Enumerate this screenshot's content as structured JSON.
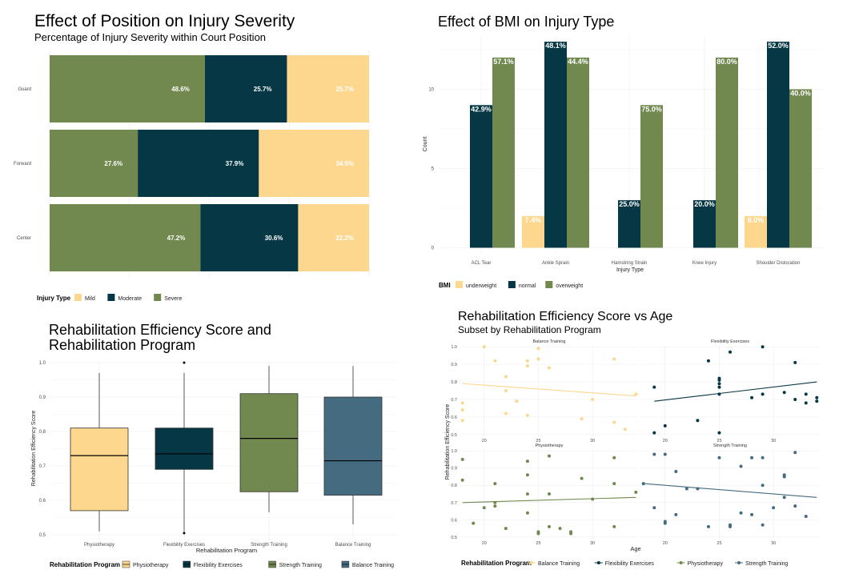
{
  "chart_data": [
    {
      "type": "bar",
      "orientation": "horizontal-stacked-percent",
      "title": "Effect of Position on Injury Severity",
      "subtitle": "Percentage of Injury Severity within Court Position",
      "categories": [
        "Guard",
        "Forward",
        "Center"
      ],
      "series": [
        {
          "name": "Severe",
          "color": "#71884F",
          "values": [
            48.6,
            27.6,
            47.2
          ],
          "labels": [
            "48.6%",
            "27.6%",
            "47.2%"
          ]
        },
        {
          "name": "Moderate",
          "color": "#063744",
          "values": [
            25.7,
            37.9,
            30.6
          ],
          "labels": [
            "25.7%",
            "37.9%",
            "30.6%"
          ]
        },
        {
          "name": "Mild",
          "color": "#FDD78E",
          "values": [
            25.7,
            34.5,
            22.2
          ],
          "labels": [
            "25.7%",
            "34.5%",
            "22.2%"
          ]
        }
      ],
      "legend": {
        "title": "Injury Type",
        "items": [
          "Mild",
          "Moderate",
          "Severe"
        ],
        "position": "bottom-left"
      }
    },
    {
      "type": "bar",
      "orientation": "grouped",
      "title": "Effect of BMI on Injury Type",
      "xlabel": "Injury Type",
      "ylabel": "Count",
      "ylim": [
        0,
        13
      ],
      "yticks": [
        "0",
        "5",
        "10"
      ],
      "categories": [
        "ACL Tear",
        "Ankle Sprain",
        "Hamstring Strain",
        "Knee Injury",
        "Shoulder Dislocation"
      ],
      "series": [
        {
          "name": "underweight",
          "color": "#FDD78E",
          "values": [
            0,
            2,
            0,
            0,
            2
          ],
          "labels": [
            "",
            "7.4%",
            "",
            "",
            "8.0%"
          ]
        },
        {
          "name": "normal",
          "color": "#063744",
          "values": [
            9,
            13,
            3,
            3,
            13
          ],
          "labels": [
            "42.9%",
            "48.1%",
            "25.0%",
            "20.0%",
            "52.0%"
          ]
        },
        {
          "name": "overweight",
          "color": "#71884F",
          "values": [
            12,
            12,
            9,
            12,
            10
          ],
          "labels": [
            "57.1%",
            "44.4%",
            "75.0%",
            "80.0%",
            "40.0%"
          ]
        }
      ],
      "legend": {
        "title": "BMI",
        "items": [
          "underweight",
          "normal",
          "overweight"
        ],
        "position": "bottom-left"
      }
    },
    {
      "type": "box",
      "title_lines": [
        "Rehabilitation Efficiency Score and",
        "Rehabilitation Program"
      ],
      "xlabel": "Rehabilitation Program",
      "ylabel": "Rehabilitation Efficiency Score",
      "ylim": [
        0.49,
        1.01
      ],
      "yticks": [
        "0.5",
        "0.6",
        "0.7",
        "0.8",
        "0.9",
        "1.0"
      ],
      "categories": [
        "Physiotherapy",
        "Flexibility Exercises",
        "Strength Training",
        "Balance Training"
      ],
      "boxes": [
        {
          "name": "Physiotherapy",
          "color": "#FDD78E",
          "min": 0.51,
          "q1": 0.57,
          "median": 0.73,
          "q3": 0.81,
          "max": 0.97,
          "outliers": []
        },
        {
          "name": "Flexibility Exercises",
          "color": "#063744",
          "min": 0.51,
          "q1": 0.69,
          "median": 0.735,
          "q3": 0.81,
          "max": 0.97,
          "outliers": [
            1.0,
            0.505
          ]
        },
        {
          "name": "Strength Training",
          "color": "#71884F",
          "min": 0.565,
          "q1": 0.625,
          "median": 0.78,
          "q3": 0.91,
          "max": 0.99,
          "outliers": []
        },
        {
          "name": "Balance Training",
          "color": "#456B80",
          "min": 0.53,
          "q1": 0.615,
          "median": 0.715,
          "q3": 0.9,
          "max": 0.99,
          "outliers": []
        }
      ],
      "legend": {
        "title": "Rehabilitation Program",
        "items": [
          "Physiotherapy",
          "Flexibility Exercises",
          "Strength Training",
          "Balance Training"
        ],
        "position": "bottom-left"
      }
    },
    {
      "type": "scatter",
      "title": "Rehabilitation Efficiency Score vs Age",
      "subtitle": "Subset by Rehabilitation Program",
      "xlabel": "Age",
      "ylabel": "Rehabilitation Efficiency Score",
      "xlim": [
        17.8,
        34.2
      ],
      "ylim": [
        0.49,
        1.01
      ],
      "xticks": [
        {
          "v": 20,
          "t": "20"
        },
        {
          "v": 25,
          "t": "25"
        },
        {
          "v": 30,
          "t": "30"
        }
      ],
      "yticks": [
        {
          "v": 0.5,
          "t": "0.5"
        },
        {
          "v": 0.6,
          "t": "0.6"
        },
        {
          "v": 0.7,
          "t": "0.7"
        },
        {
          "v": 0.8,
          "t": "0.8"
        },
        {
          "v": 0.9,
          "t": "0.9"
        },
        {
          "v": 1.0,
          "t": "1.0"
        }
      ],
      "panels": [
        {
          "name": "Balance Training",
          "color": "#FDD78E",
          "trend": [
            [
              18,
              0.79
            ],
            [
              34,
              0.72
            ]
          ],
          "points": [
            [
              18,
              0.68
            ],
            [
              18,
              0.64
            ],
            [
              18,
              0.58
            ],
            [
              20,
              1.0
            ],
            [
              21,
              0.92
            ],
            [
              22,
              0.83
            ],
            [
              22,
              0.75
            ],
            [
              22,
              0.62
            ],
            [
              23,
              0.69
            ],
            [
              24,
              0.92
            ],
            [
              24,
              0.89
            ],
            [
              24,
              0.61
            ],
            [
              25,
              0.99
            ],
            [
              25,
              0.93
            ],
            [
              26,
              0.88
            ],
            [
              29,
              0.59
            ],
            [
              30,
              0.7
            ],
            [
              32,
              0.93
            ],
            [
              32,
              0.57
            ],
            [
              33,
              0.53
            ],
            [
              34,
              0.73
            ]
          ]
        },
        {
          "name": "Flexibility Exercises",
          "color": "#063744",
          "trend": [
            [
              19,
              0.69
            ],
            [
              34,
              0.8
            ]
          ],
          "points": [
            [
              19,
              0.77
            ],
            [
              19,
              0.51
            ],
            [
              20,
              0.55
            ],
            [
              23,
              0.58
            ],
            [
              24,
              0.92
            ],
            [
              25,
              0.82
            ],
            [
              25,
              0.81
            ],
            [
              25,
              0.79
            ],
            [
              25,
              0.77
            ],
            [
              25,
              0.73
            ],
            [
              25,
              0.51
            ],
            [
              26,
              0.97
            ],
            [
              28,
              0.71
            ],
            [
              29,
              1.0
            ],
            [
              29,
              0.73
            ],
            [
              31,
              0.74
            ],
            [
              32,
              0.91
            ],
            [
              32,
              0.7
            ],
            [
              33,
              0.73
            ],
            [
              33,
              0.68
            ],
            [
              34,
              0.71
            ],
            [
              34,
              0.69
            ]
          ]
        },
        {
          "name": "Physiotherapy",
          "color": "#71884F",
          "trend": [
            [
              18,
              0.7
            ],
            [
              34,
              0.73
            ]
          ],
          "points": [
            [
              18,
              0.95
            ],
            [
              18,
              0.83
            ],
            [
              19,
              0.58
            ],
            [
              20,
              0.67
            ],
            [
              21,
              0.81
            ],
            [
              21,
              0.7
            ],
            [
              21,
              0.68
            ],
            [
              22,
              0.55
            ],
            [
              24,
              0.94
            ],
            [
              24,
              0.86
            ],
            [
              24,
              0.75
            ],
            [
              24,
              0.64
            ],
            [
              25,
              0.53
            ],
            [
              25,
              0.52
            ],
            [
              26,
              0.97
            ],
            [
              26,
              0.75
            ],
            [
              26,
              0.56
            ],
            [
              27,
              0.55
            ],
            [
              28,
              0.53
            ],
            [
              28,
              0.52
            ],
            [
              29,
              0.84
            ],
            [
              30,
              0.72
            ],
            [
              32,
              0.96
            ],
            [
              32,
              0.81
            ],
            [
              32,
              0.56
            ],
            [
              34,
              0.76
            ]
          ]
        },
        {
          "name": "Strength Training",
          "color": "#456B80",
          "trend": [
            [
              18,
              0.81
            ],
            [
              34,
              0.73
            ]
          ],
          "points": [
            [
              18,
              0.81
            ],
            [
              19,
              0.98
            ],
            [
              19,
              0.67
            ],
            [
              20,
              0.98
            ],
            [
              20,
              0.59
            ],
            [
              20,
              0.58
            ],
            [
              21,
              0.88
            ],
            [
              21,
              0.63
            ],
            [
              22,
              0.78
            ],
            [
              23,
              0.78
            ],
            [
              24,
              0.56
            ],
            [
              25,
              0.96
            ],
            [
              26,
              0.56
            ],
            [
              26,
              0.57
            ],
            [
              27,
              0.91
            ],
            [
              27,
              0.64
            ],
            [
              28,
              0.96
            ],
            [
              28,
              0.63
            ],
            [
              29,
              0.96
            ],
            [
              29,
              0.8
            ],
            [
              29,
              0.57
            ],
            [
              30,
              0.67
            ],
            [
              31,
              0.73
            ],
            [
              31,
              0.86
            ],
            [
              31,
              0.85
            ],
            [
              32,
              0.99
            ],
            [
              32,
              0.68
            ],
            [
              33,
              0.62
            ]
          ]
        }
      ],
      "legend": {
        "title": "Rehabilitation Program",
        "items": [
          "Balance Training",
          "Flexibility Exercises",
          "Physiotherapy",
          "Strength Training"
        ],
        "position": "bottom-left"
      }
    }
  ]
}
